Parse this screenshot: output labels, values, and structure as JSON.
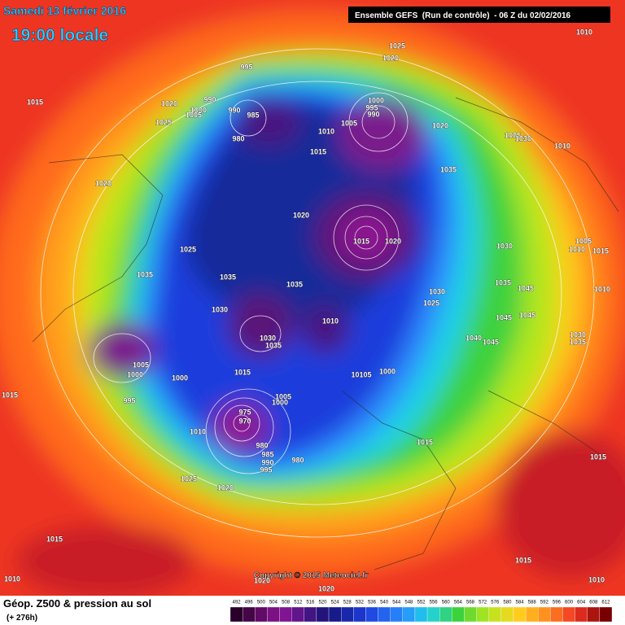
{
  "header": {
    "date": "Samedi 13 février 2016",
    "time": "19:00 locale",
    "run": "Ensemble GEFS  (Run de contrôle)  - 06 Z du 02/02/2016"
  },
  "footer": {
    "title": "Géop. Z500 & pression au sol",
    "subtitle": "(+ 276h)",
    "copyright": "Copyright © 2015 Meteociel.fr"
  },
  "legend": {
    "levels": [
      492,
      496,
      500,
      504,
      508,
      512,
      516,
      520,
      524,
      528,
      532,
      536,
      540,
      544,
      548,
      552,
      556,
      560,
      564,
      568,
      572,
      576,
      580,
      584,
      588,
      592,
      596,
      600,
      604,
      608,
      612
    ]
  },
  "isobar_labels": [
    "1010",
    "1025",
    "1020",
    "995",
    "990",
    "1000",
    "1005",
    "990",
    "985",
    "1020",
    "1025",
    "1015",
    "980",
    "1000",
    "995",
    "990",
    "1005",
    "1010",
    "1020",
    "1015",
    "1005",
    "1030",
    "1010",
    "1020",
    "1035",
    "1020",
    "1015",
    "1020",
    "1025",
    "1035",
    "1035",
    "1035",
    "1030",
    "1005",
    "1010",
    "1015",
    "1030",
    "1025",
    "1035",
    "1045",
    "1030",
    "1045",
    "1045",
    "1010",
    "1010",
    "1030",
    "1035",
    "1040",
    "1045",
    "1030",
    "1035",
    "1005",
    "1000",
    "1000",
    "1015",
    "10105",
    "1000",
    "1015",
    "995",
    "1005",
    "1000",
    "975",
    "970",
    "1010",
    "980",
    "985",
    "990",
    "995",
    "980",
    "1015",
    "1015",
    "1025",
    "1020",
    "1015",
    "1015",
    "1010",
    "1010",
    "1020",
    "1020"
  ]
}
